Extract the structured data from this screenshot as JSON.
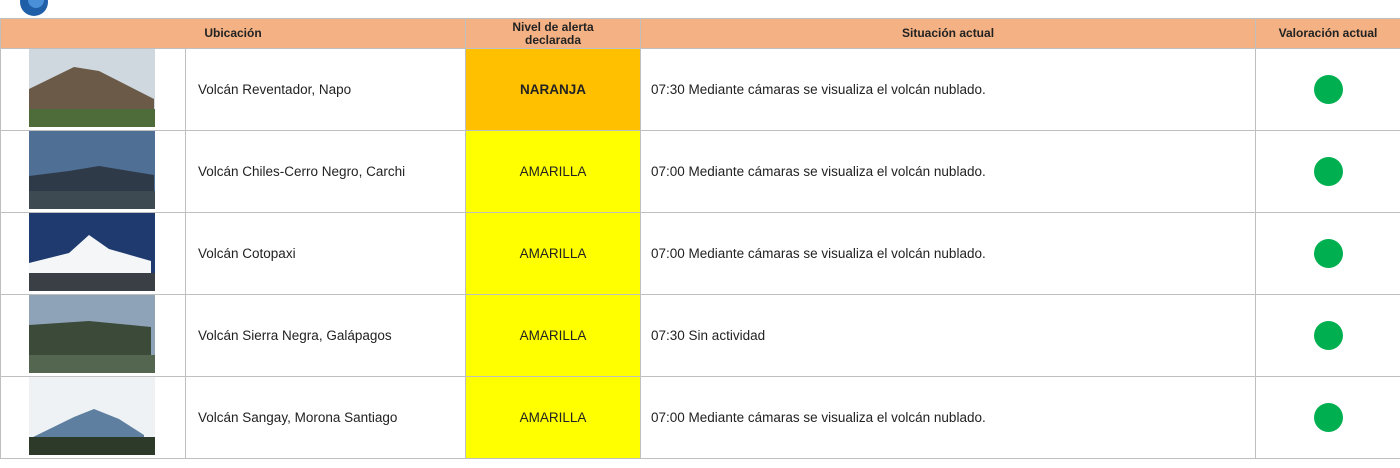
{
  "table": {
    "header": [
      "Ubicación",
      "Nivel de alerta declarada",
      "Situación actual",
      "Valoración actual"
    ],
    "rows": [
      {
        "location": "Volcán Reventador, Napo",
        "alert": "NARANJA",
        "alert_color": "#ffc000",
        "situation": "07:30 Mediante cámaras se visualiza el volcán nublado."
      },
      {
        "location": "Volcán Chiles-Cerro Negro, Carchi",
        "alert": "AMARILLA",
        "alert_color": "#ffff00",
        "situation": "07:00 Mediante cámaras se visualiza el volcán nublado."
      },
      {
        "location": "Volcán Cotopaxi",
        "alert": "AMARILLA",
        "alert_color": "#ffff00",
        "situation": "07:00 Mediante cámaras se visualiza el volcán nublado."
      },
      {
        "location": "Volcán Sierra Negra, Galápagos",
        "alert": "AMARILLA",
        "alert_color": "#ffff00",
        "situation": "07:30 Sin actividad"
      },
      {
        "location": "Volcán Sangay, Morona Santiago",
        "alert": "AMARILLA",
        "alert_color": "#ffff00",
        "situation": "07:00 Mediante cámaras se visualiza el volcán nublado."
      }
    ]
  }
}
